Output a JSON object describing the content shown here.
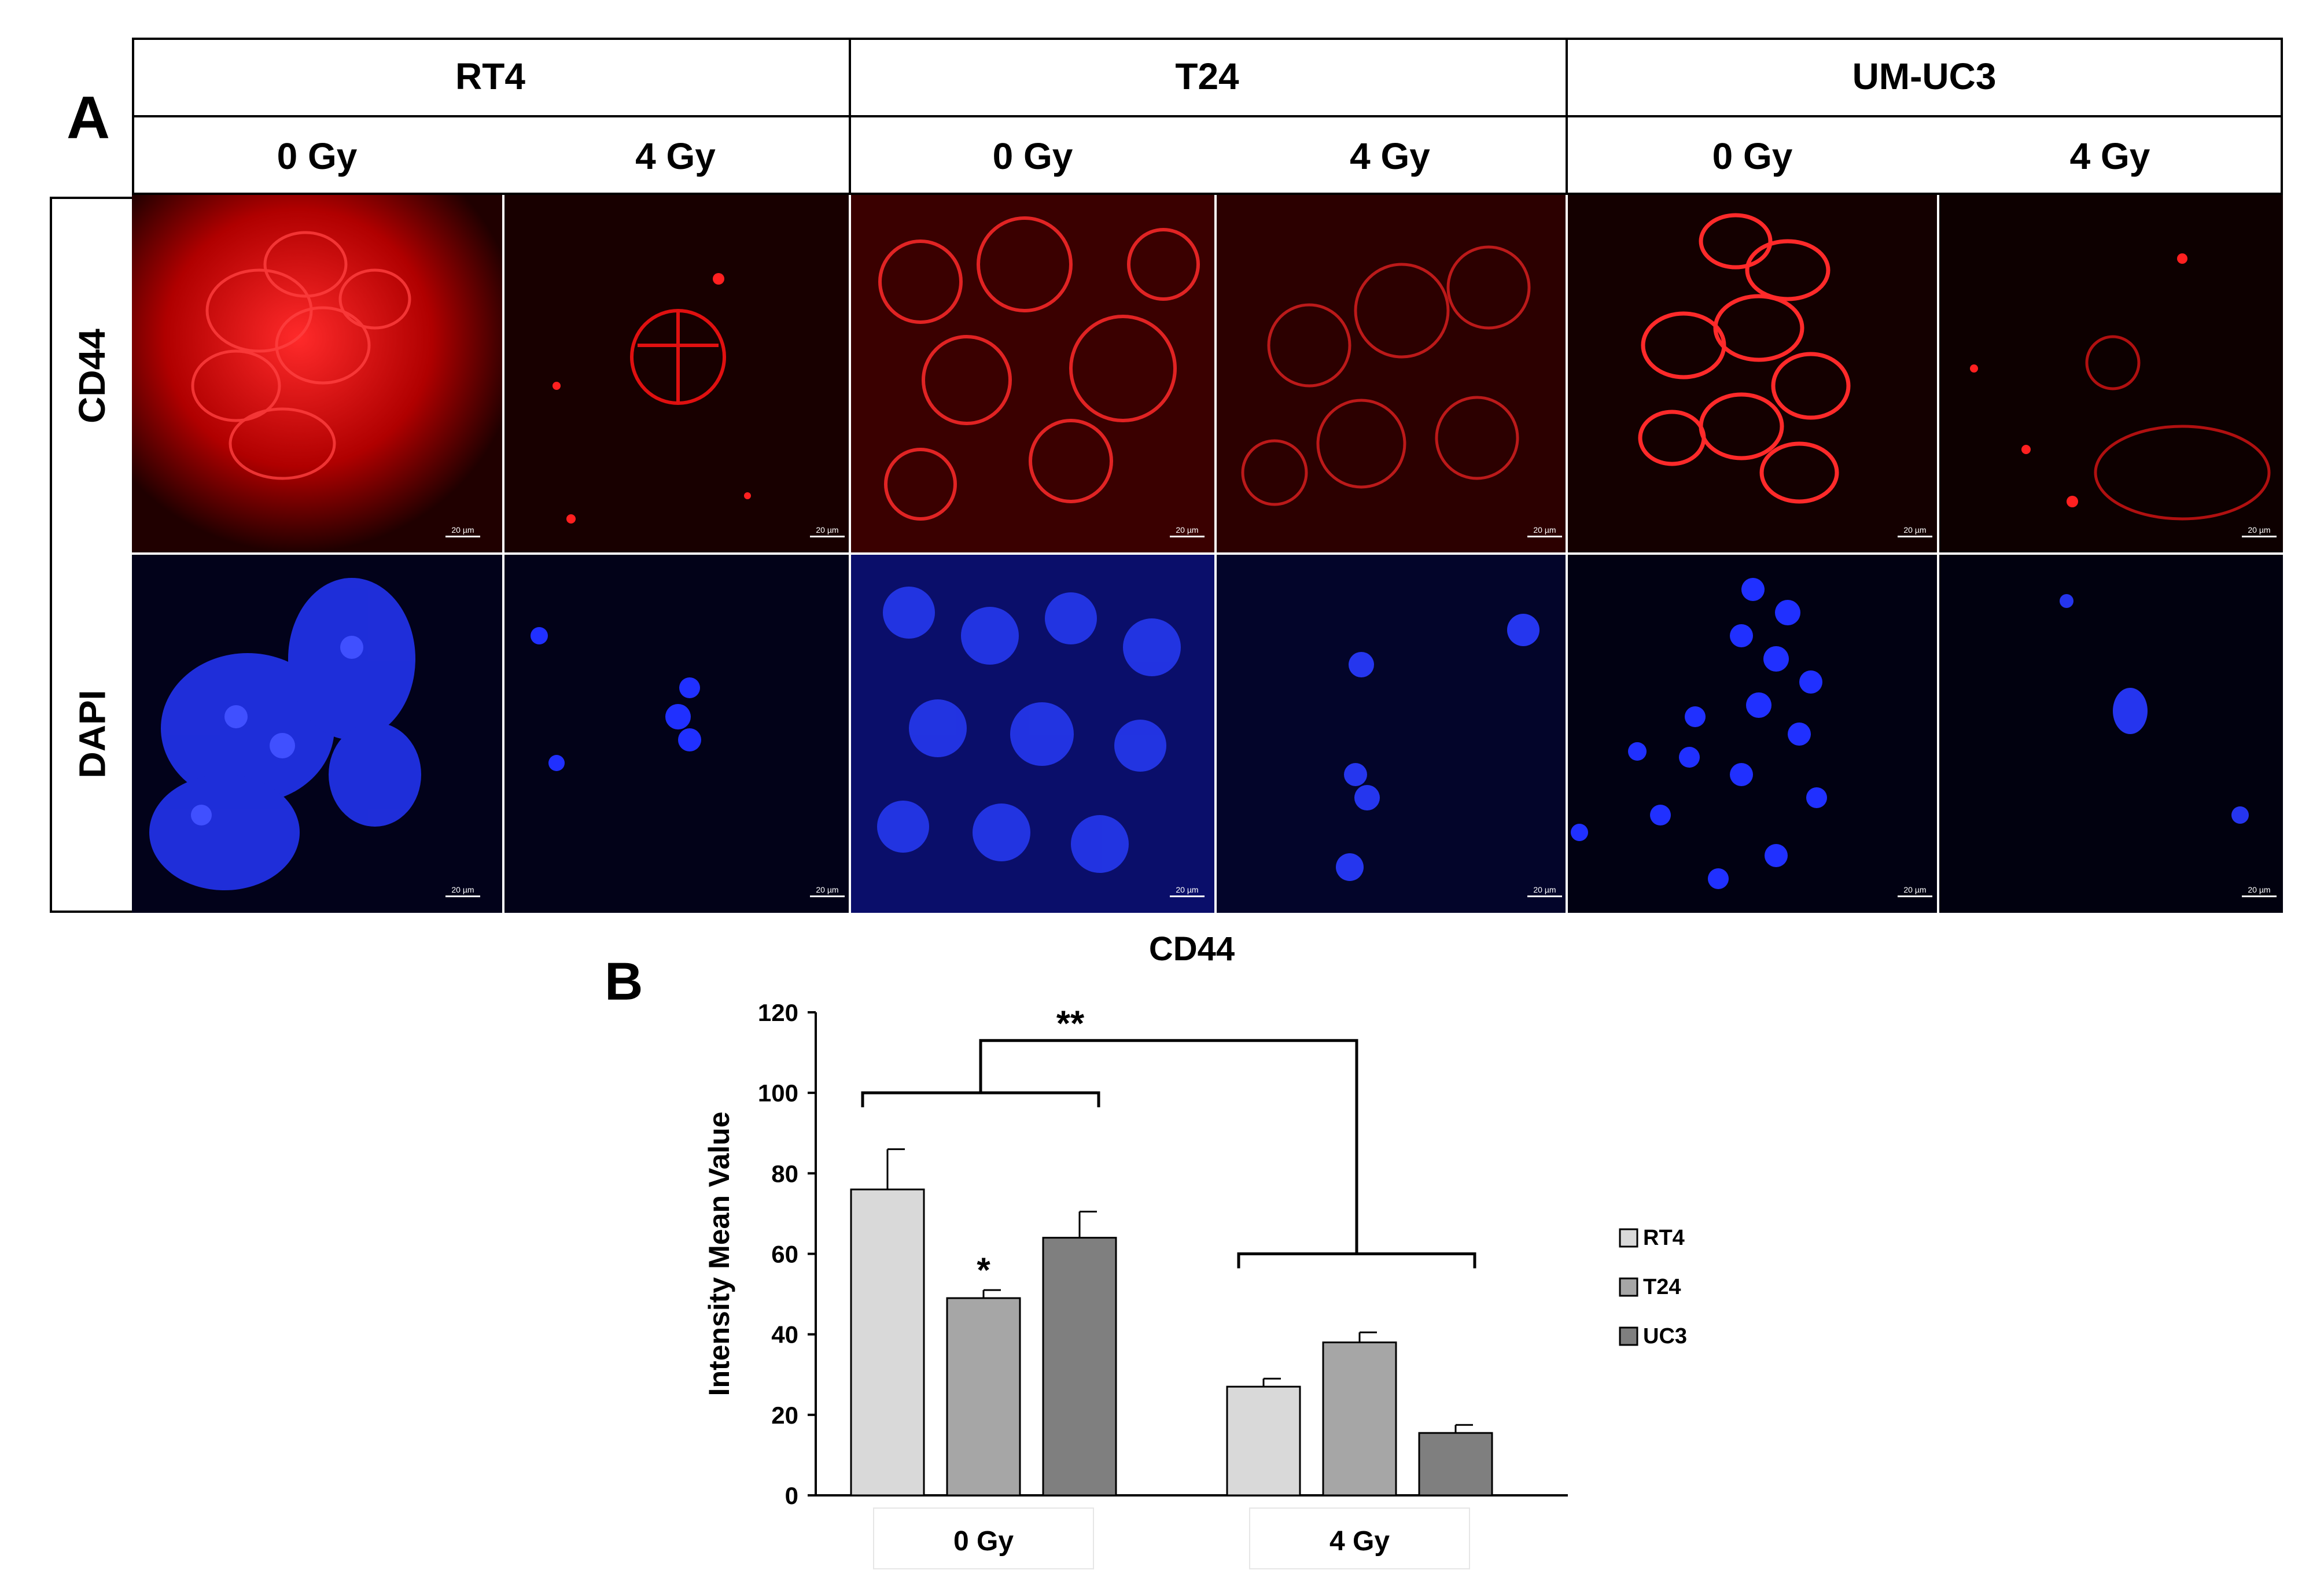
{
  "figure": {
    "panel_a_label": "A",
    "panel_b_label": "B",
    "cell_lines": [
      "RT4",
      "T24",
      "UM-UC3"
    ],
    "doses": [
      "0 Gy",
      "4 Gy",
      "0 Gy",
      "4 Gy",
      "0 Gy",
      "4 Gy"
    ],
    "rows": [
      "CD44",
      "DAPI"
    ],
    "scale_bar": "20 µm",
    "colors": {
      "cd44": "#ff1a1a",
      "dapi": "#1a2cff",
      "grid": "#ffffff"
    }
  },
  "chart_data": {
    "type": "bar",
    "title": "CD44",
    "ylabel": "Intensity Mean Value",
    "xlabel": "",
    "categories": [
      "0 Gy",
      "4 Gy"
    ],
    "ylim": [
      0,
      120
    ],
    "yticks": [
      0,
      20,
      40,
      60,
      80,
      100,
      120
    ],
    "series": [
      {
        "name": "RT4",
        "values": [
          76,
          27
        ],
        "errors": [
          10,
          2
        ],
        "color": "#d9d9d9"
      },
      {
        "name": "T24",
        "values": [
          49,
          38
        ],
        "errors": [
          2,
          2.5
        ],
        "color": "#a6a6a6"
      },
      {
        "name": "UC3",
        "values": [
          64,
          15.5
        ],
        "errors": [
          6.5,
          2
        ],
        "color": "#7f7f7f"
      }
    ],
    "annotations": {
      "single": "*",
      "double": "**"
    },
    "legend": "right"
  }
}
